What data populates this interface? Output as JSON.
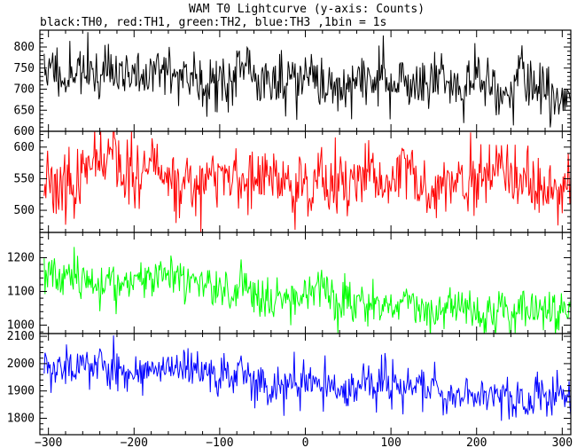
{
  "chart_data": {
    "type": "line",
    "title": "WAM T0 Lightcurve (y-axis: Counts)",
    "subtitle": "black:TH0, red:TH1, green:TH2, blue:TH3 ,1bin = 1s",
    "xlim": [
      -310,
      310
    ],
    "x_ticks": [
      -300,
      -200,
      -100,
      0,
      100,
      200,
      300
    ],
    "x_tick_labels": [
      "−300",
      "−200",
      "−100",
      "0",
      "100",
      "200",
      "300"
    ],
    "panels": [
      {
        "series_label": "TH0",
        "color": "#000000",
        "ylim": [
          600,
          840
        ],
        "y_ticks": [
          600,
          650,
          700,
          750,
          800
        ],
        "trend_start": 745,
        "trend_end": 700,
        "noise": 32,
        "seed": 11
      },
      {
        "series_label": "TH1",
        "color": "#ff0000",
        "ylim": [
          465,
          625
        ],
        "y_ticks": [
          500,
          550,
          600
        ],
        "trend_start": 555,
        "trend_end": 530,
        "noise": 24,
        "seed": 23
      },
      {
        "series_label": "TH2",
        "color": "#00ff00",
        "ylim": [
          975,
          1275
        ],
        "y_ticks": [
          1000,
          1100,
          1200
        ],
        "trend_start": 1150,
        "trend_end": 1030,
        "noise": 30,
        "seed": 37
      },
      {
        "series_label": "TH3",
        "color": "#0000ff",
        "ylim": [
          1740,
          2110
        ],
        "y_ticks": [
          1800,
          1900,
          2000,
          2100
        ],
        "trend_start": 2005,
        "trend_end": 1870,
        "noise": 38,
        "seed": 53
      }
    ]
  }
}
